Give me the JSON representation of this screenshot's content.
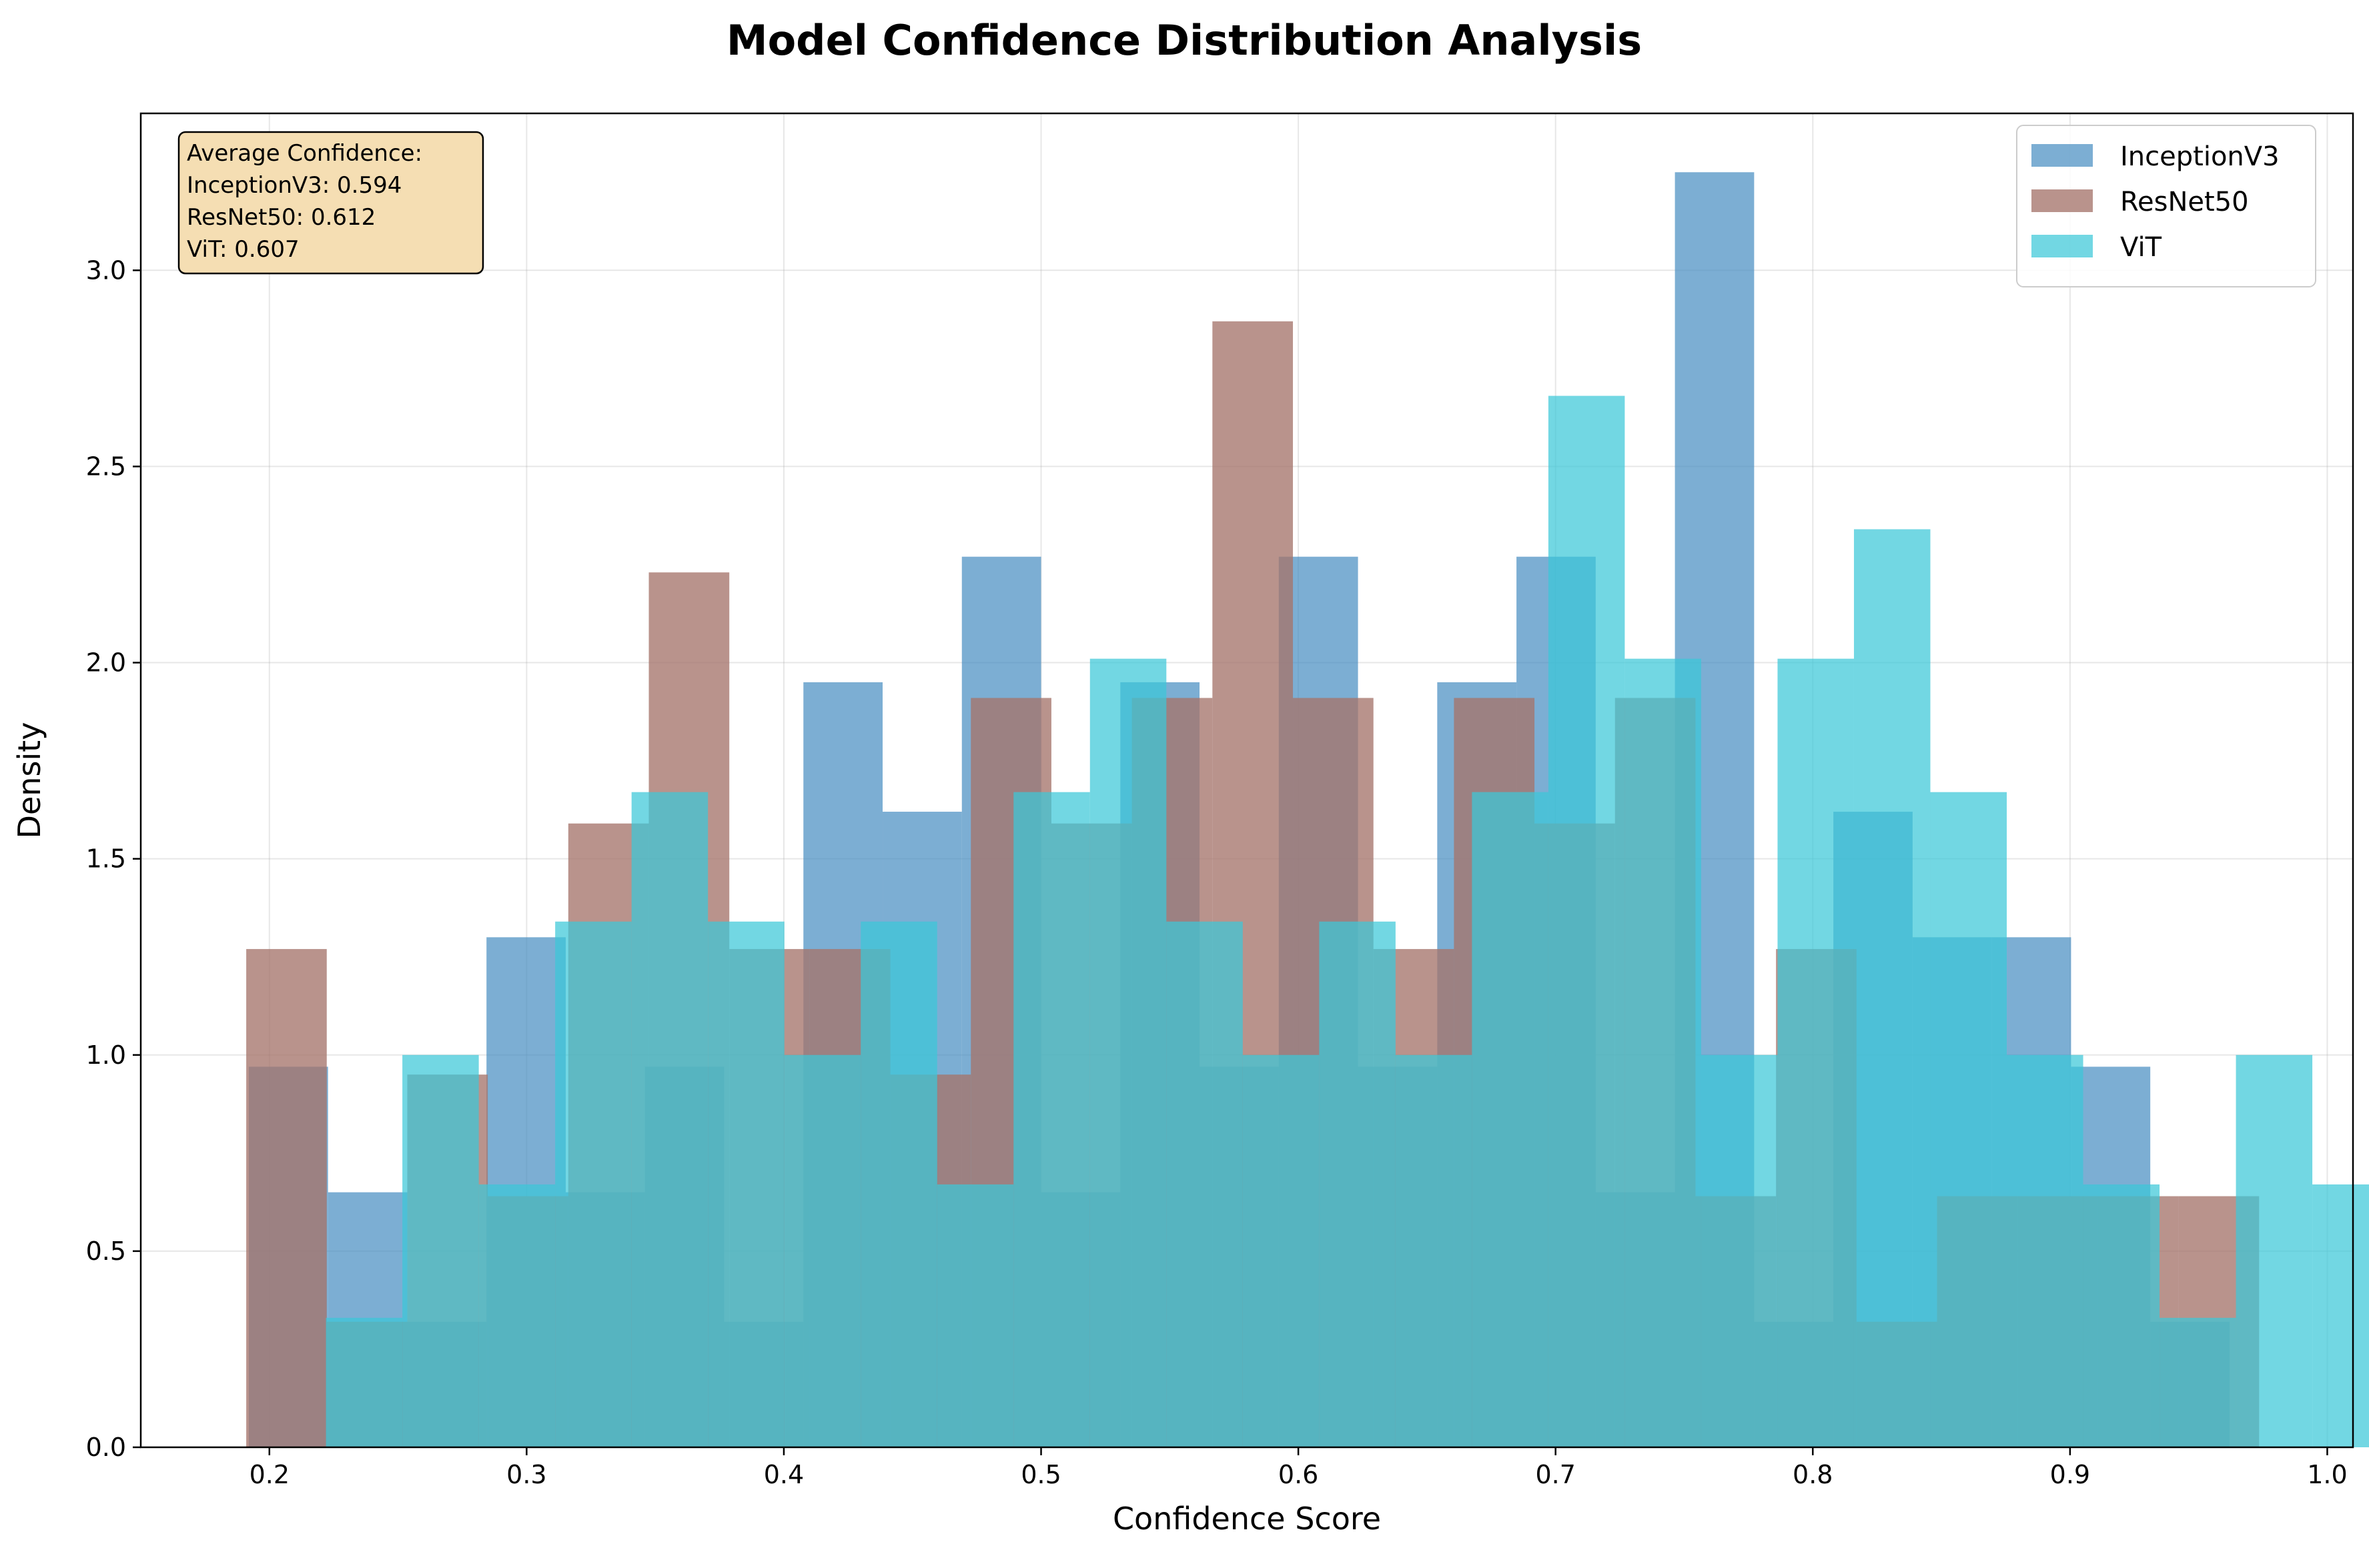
{
  "chart_data": {
    "type": "bar",
    "subtype": "overlapping-histogram",
    "title": "Model Confidence Distribution Analysis",
    "xlabel": "Confidence Score",
    "ylabel": "Density",
    "xlim": [
      0.15,
      1.01
    ],
    "ylim": [
      0,
      3.4
    ],
    "xticks": [
      0.2,
      0.3,
      0.4,
      0.5,
      0.6,
      0.7,
      0.8,
      0.9,
      1.0
    ],
    "yticks": [
      0.0,
      0.5,
      1.0,
      1.5,
      2.0,
      2.5,
      3.0
    ],
    "grid": true,
    "legend_position": "top-right",
    "series": [
      {
        "name": "InceptionV3",
        "color": "#4a8fc2",
        "opacity": 0.72,
        "bin_start": 0.192,
        "bin_width": 0.0308,
        "values": [
          0.97,
          0.65,
          0.32,
          1.3,
          0.65,
          0.97,
          0.32,
          1.95,
          1.62,
          2.27,
          0.65,
          1.95,
          0.97,
          2.27,
          0.97,
          1.95,
          2.27,
          0.65,
          3.25,
          0.32,
          1.62,
          1.3,
          1.3,
          0.97,
          0.32
        ]
      },
      {
        "name": "ResNet50",
        "color": "#a5756b",
        "opacity": 0.78,
        "bin_start": 0.191,
        "bin_width": 0.0313,
        "values": [
          1.27,
          0.32,
          0.95,
          0.64,
          1.59,
          2.23,
          1.27,
          1.27,
          0.95,
          1.91,
          1.59,
          1.91,
          2.87,
          1.91,
          1.27,
          1.91,
          1.59,
          1.91,
          0.64,
          1.27,
          0.32,
          0.64,
          0.64,
          0.64,
          0.64
        ]
      },
      {
        "name": "ViT",
        "color": "#3cc8d8",
        "opacity": 0.72,
        "bin_start": 0.222,
        "bin_width": 0.0297,
        "values": [
          0.33,
          1.0,
          0.67,
          1.34,
          1.67,
          1.34,
          1.0,
          1.34,
          0.67,
          1.67,
          2.01,
          1.34,
          1.0,
          1.34,
          1.0,
          1.67,
          2.68,
          2.01,
          1.0,
          2.01,
          2.34,
          1.67,
          1.0,
          0.67,
          0.33,
          1.0,
          0.67
        ]
      }
    ],
    "annotation": {
      "lines": [
        "Average Confidence:",
        "InceptionV3: 0.594",
        "ResNet50: 0.612",
        "ViT: 0.607"
      ],
      "box_color": "#f5deb3"
    }
  }
}
